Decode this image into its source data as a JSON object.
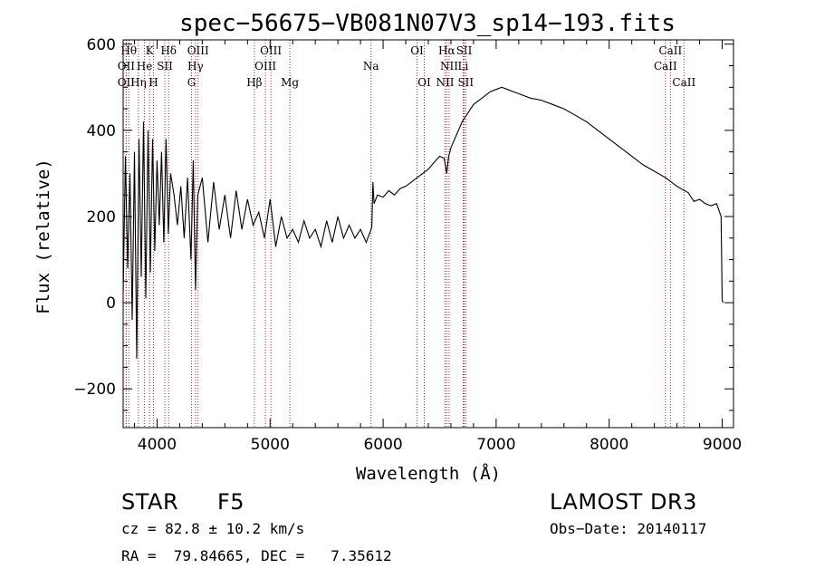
{
  "chart_data": {
    "type": "line",
    "title": "spec−56675−VB081N07V3_sp14−193.fits",
    "xlabel": "Wavelength (Å)",
    "ylabel": "Flux (relative)",
    "xlim": [
      3700,
      9100
    ],
    "ylim": [
      -290,
      610
    ],
    "xticks": [
      4000,
      5000,
      6000,
      7000,
      8000,
      9000
    ],
    "xtick_labels": [
      "4000",
      "5000",
      "6000",
      "7000",
      "8000",
      "9000"
    ],
    "yticks": [
      -200,
      0,
      200,
      400,
      600
    ],
    "ytick_labels": [
      "−200",
      "0",
      "200",
      "400",
      "600"
    ],
    "grid": false,
    "series": [
      {
        "name": "flux",
        "x": [
          3700,
          3720,
          3740,
          3760,
          3780,
          3800,
          3820,
          3840,
          3860,
          3880,
          3900,
          3920,
          3940,
          3960,
          3980,
          4000,
          4020,
          4040,
          4060,
          4080,
          4100,
          4120,
          4150,
          4180,
          4210,
          4240,
          4270,
          4300,
          4320,
          4340,
          4360,
          4400,
          4450,
          4500,
          4550,
          4600,
          4650,
          4700,
          4750,
          4800,
          4850,
          4900,
          4950,
          5000,
          5050,
          5100,
          5150,
          5200,
          5250,
          5300,
          5350,
          5400,
          5450,
          5500,
          5550,
          5600,
          5650,
          5700,
          5750,
          5800,
          5850,
          5900,
          5910,
          5920,
          5950,
          6000,
          6050,
          6100,
          6150,
          6200,
          6250,
          6300,
          6350,
          6400,
          6450,
          6500,
          6540,
          6563,
          6580,
          6600,
          6650,
          6700,
          6750,
          6800,
          6850,
          6900,
          6950,
          7000,
          7050,
          7100,
          7150,
          7200,
          7300,
          7400,
          7500,
          7600,
          7700,
          7800,
          7900,
          8000,
          8100,
          8200,
          8300,
          8400,
          8500,
          8600,
          8700,
          8750,
          8800,
          8850,
          8900,
          8950,
          8990,
          9000,
          9010
        ],
        "values": [
          20,
          340,
          80,
          300,
          -40,
          350,
          -130,
          380,
          60,
          420,
          10,
          400,
          70,
          380,
          120,
          330,
          180,
          350,
          140,
          380,
          160,
          300,
          250,
          180,
          270,
          150,
          290,
          100,
          330,
          30,
          250,
          290,
          140,
          280,
          170,
          250,
          150,
          260,
          170,
          240,
          180,
          210,
          150,
          240,
          130,
          200,
          150,
          170,
          140,
          190,
          150,
          170,
          130,
          190,
          140,
          200,
          150,
          180,
          150,
          170,
          140,
          175,
          280,
          230,
          250,
          245,
          260,
          250,
          265,
          270,
          280,
          290,
          300,
          310,
          325,
          340,
          335,
          300,
          340,
          360,
          390,
          420,
          440,
          460,
          470,
          480,
          490,
          495,
          500,
          495,
          490,
          485,
          475,
          470,
          460,
          450,
          435,
          420,
          400,
          380,
          360,
          340,
          320,
          305,
          290,
          270,
          255,
          235,
          240,
          230,
          225,
          230,
          200,
          5,
          0
        ]
      }
    ],
    "line_markers": [
      {
        "label": "Hθ",
        "x": 3750,
        "row": 1
      },
      {
        "label": "Hη",
        "x": 3835,
        "row": 3
      },
      {
        "label": "K",
        "x": 3934,
        "row": 1
      },
      {
        "label": "Hδ",
        "x": 4102,
        "row": 1
      },
      {
        "label": "OII",
        "x": 3727,
        "row": 2
      },
      {
        "label": "He",
        "x": 3889,
        "row": 2
      },
      {
        "label": "SII",
        "x": 4069,
        "row": 2
      },
      {
        "label": "OII",
        "x": 3727,
        "row": 3
      },
      {
        "label": "H",
        "x": 3968,
        "row": 3
      },
      {
        "label": "OIII",
        "x": 4363,
        "row": 1
      },
      {
        "label": "Hγ",
        "x": 4340,
        "row": 2
      },
      {
        "label": "G",
        "x": 4305,
        "row": 3
      },
      {
        "label": "Hβ",
        "x": 4861,
        "row": 3
      },
      {
        "label": "OIII",
        "x": 5007,
        "row": 1
      },
      {
        "label": "OIII",
        "x": 4959,
        "row": 2
      },
      {
        "label": "Mg",
        "x": 5175,
        "row": 3
      },
      {
        "label": "Na",
        "x": 5893,
        "row": 2
      },
      {
        "label": "OI",
        "x": 6300,
        "row": 1
      },
      {
        "label": "OI",
        "x": 6364,
        "row": 3
      },
      {
        "label": "Hα",
        "x": 6563,
        "row": 1
      },
      {
        "label": "SII",
        "x": 6717,
        "row": 1
      },
      {
        "label": "NII",
        "x": 6584,
        "row": 2
      },
      {
        "label": "Li",
        "x": 6708,
        "row": 2
      },
      {
        "label": "NII",
        "x": 6548,
        "row": 3
      },
      {
        "label": "SII",
        "x": 6731,
        "row": 3
      },
      {
        "label": "CaII",
        "x": 8542,
        "row": 1
      },
      {
        "label": "CaII",
        "x": 8498,
        "row": 2
      },
      {
        "label": "CaII",
        "x": 8662,
        "row": 3
      }
    ],
    "marker_color": "#b22222"
  },
  "info": {
    "class": "STAR",
    "subclass": "F5",
    "survey": "LAMOST DR3",
    "cz": "cz = 82.8 ± 10.2 km/s",
    "obs_date": "Obs−Date: 20140117",
    "coords": "RA =  79.84665, DEC =   7.35612"
  }
}
